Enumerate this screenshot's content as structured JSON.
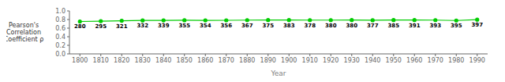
{
  "chart_data": {
    "type": "line",
    "xlabel": "Year",
    "ylabel": "Pearson's\nCorrelation\nCoefficient ρ",
    "x": [
      1800,
      1810,
      1820,
      1830,
      1840,
      1850,
      1860,
      1870,
      1880,
      1890,
      1900,
      1910,
      1920,
      1930,
      1940,
      1950,
      1960,
      1970,
      1980,
      1990
    ],
    "values": [
      0.755,
      0.762,
      0.772,
      0.778,
      0.78,
      0.784,
      0.781,
      0.782,
      0.786,
      0.787,
      0.788,
      0.786,
      0.786,
      0.787,
      0.784,
      0.787,
      0.788,
      0.786,
      0.777,
      0.796
    ],
    "annotations": [
      "280",
      "295",
      "321",
      "332",
      "339",
      "355",
      "354",
      "356",
      "367",
      "375",
      "383",
      "378",
      "380",
      "380",
      "377",
      "385",
      "391",
      "393",
      "395",
      "397"
    ],
    "color": "#00CC00",
    "marker": "o",
    "xlim": [
      1795,
      1995
    ],
    "xticks": [
      1800,
      1810,
      1820,
      1830,
      1840,
      1850,
      1860,
      1870,
      1880,
      1890,
      1900,
      1910,
      1920,
      1930,
      1940,
      1950,
      1960,
      1970,
      1980,
      1990
    ],
    "ylim": [
      0.0,
      1.0
    ],
    "yticks": [
      {
        "value": 0,
        "label": "0.0"
      },
      0.2,
      0.4,
      0.6,
      0.8,
      {
        "value": 1,
        "label": "1.0"
      }
    ],
    "grid": false
  }
}
